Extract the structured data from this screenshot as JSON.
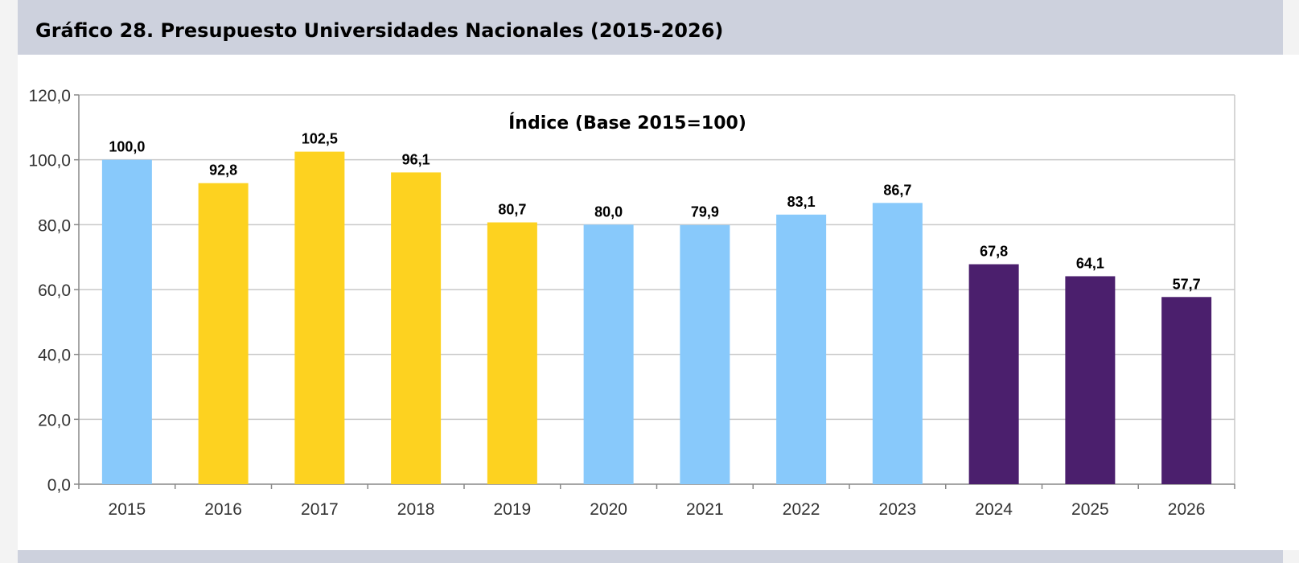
{
  "header": {
    "title": "Gráfico 28. Presupuesto Universidades Nacionales (2015-2026)"
  },
  "chart_data": {
    "type": "bar",
    "title": "Índice (Base 2015=100)",
    "xlabel": "",
    "ylabel": "",
    "ylim": [
      0,
      120
    ],
    "yticks": [
      0,
      20,
      40,
      60,
      80,
      100,
      120
    ],
    "ytick_labels": [
      "0,0",
      "20,0",
      "40,0",
      "60,0",
      "80,0",
      "100,0",
      "120,0"
    ],
    "grid": true,
    "categories": [
      "2015",
      "2016",
      "2017",
      "2018",
      "2019",
      "2020",
      "2021",
      "2022",
      "2023",
      "2024",
      "2025",
      "2026"
    ],
    "values": [
      100.0,
      92.8,
      102.5,
      96.1,
      80.7,
      80.0,
      79.9,
      83.1,
      86.7,
      67.8,
      64.1,
      57.7
    ],
    "value_labels": [
      "100,0",
      "92,8",
      "102,5",
      "96,1",
      "80,7",
      "80,0",
      "79,9",
      "83,1",
      "86,7",
      "67,8",
      "64,1",
      "57,7"
    ],
    "bar_colors": [
      "#88c9fb",
      "#fdd220",
      "#fdd220",
      "#fdd220",
      "#fdd220",
      "#88c9fb",
      "#88c9fb",
      "#88c9fb",
      "#88c9fb",
      "#4b1f6d",
      "#4b1f6d",
      "#4b1f6d"
    ]
  },
  "colors": {
    "header_band": "#cdd1dd",
    "gridline": "#c8c8c8",
    "axis": "#888888"
  }
}
